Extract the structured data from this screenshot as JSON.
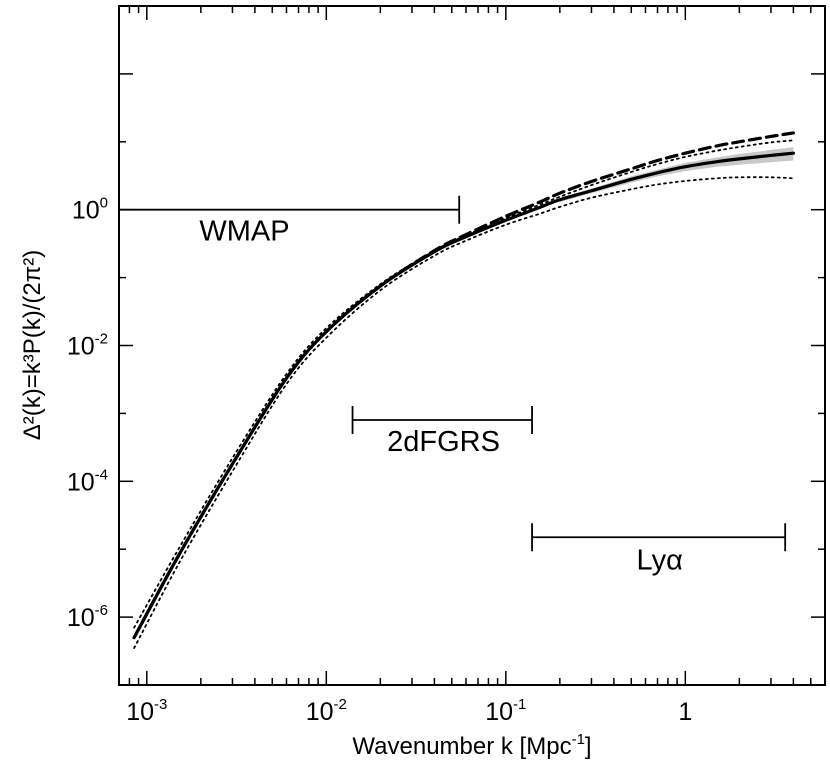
{
  "chart_data": {
    "type": "line",
    "title": "",
    "xlabel": "Wavenumber k [Mpc",
    "xlabel_sup": "-1",
    "xlabel_end": "]",
    "ylabel": "Δ²(k)=k³P(k)/(2π²)",
    "x_scale": "log",
    "y_scale": "log",
    "xlim": [
      0.0007,
      6.0
    ],
    "ylim": [
      1e-07,
      1000
    ],
    "grid": false,
    "legend": "none",
    "x_ticks": [
      {
        "base": "10",
        "exp": "-3",
        "value": 0.001
      },
      {
        "base": "10",
        "exp": "-2",
        "value": 0.01
      },
      {
        "base": "10",
        "exp": "-1",
        "value": 0.1
      },
      {
        "base": "1",
        "exp": "",
        "value": 1
      }
    ],
    "y_ticks": [
      {
        "base": "10",
        "exp": "-6",
        "value": 1e-06
      },
      {
        "base": "10",
        "exp": "-4",
        "value": 0.0001
      },
      {
        "base": "10",
        "exp": "-2",
        "value": 0.01
      },
      {
        "base": "10",
        "exp": "0",
        "value": 1
      }
    ],
    "annotations": [
      {
        "label": "WMAP",
        "k_min": 0.0007,
        "k_max": 0.055,
        "y": 1.0,
        "label_x": 0.0035,
        "label_y": 0.35
      },
      {
        "label": "2dFGRS",
        "k_min": 0.014,
        "k_max": 0.14,
        "y": 0.0008,
        "label_x": 0.045,
        "label_y": 0.00028
      },
      {
        "label": "Lyα",
        "k_min": 0.14,
        "k_max": 3.6,
        "y": 1.5e-05,
        "label_x": 0.72,
        "label_y": 5e-06
      }
    ],
    "series": [
      {
        "style": "solid",
        "x": [
          0.00085,
          0.0015,
          0.003,
          0.006,
          0.01,
          0.02,
          0.04,
          0.06,
          0.1,
          0.15,
          0.2,
          0.3,
          0.5,
          0.7,
          1.0,
          1.5,
          2.0,
          3.0,
          4.0
        ],
        "y": [
          5e-07,
          8e-06,
          0.00018,
          0.0033,
          0.016,
          0.075,
          0.24,
          0.4,
          0.7,
          1.05,
          1.4,
          1.9,
          2.8,
          3.5,
          4.3,
          5.1,
          5.6,
          6.3,
          6.8
        ]
      },
      {
        "style": "dashed",
        "x": [
          0.00085,
          0.0015,
          0.003,
          0.006,
          0.01,
          0.02,
          0.04,
          0.06,
          0.1,
          0.15,
          0.2,
          0.3,
          0.5,
          0.7,
          1.0,
          1.5,
          2.0,
          3.0,
          4.0
        ],
        "y": [
          5e-07,
          8e-06,
          0.00018,
          0.0033,
          0.016,
          0.075,
          0.25,
          0.43,
          0.8,
          1.25,
          1.75,
          2.6,
          4.0,
          5.3,
          6.8,
          8.7,
          10.0,
          12.0,
          13.5
        ]
      },
      {
        "style": "dotted-upper",
        "x": [
          0.00085,
          0.0015,
          0.003,
          0.006,
          0.01,
          0.02,
          0.04,
          0.06,
          0.1,
          0.15,
          0.2,
          0.3,
          0.5,
          0.7,
          1.0,
          1.5,
          2.0,
          3.0,
          4.0
        ],
        "y": [
          7e-07,
          1e-05,
          0.00022,
          0.0038,
          0.018,
          0.08,
          0.25,
          0.42,
          0.75,
          1.15,
          1.55,
          2.3,
          3.6,
          4.7,
          6.0,
          7.4,
          8.4,
          9.8,
          10.5
        ]
      },
      {
        "style": "dotted-lower",
        "x": [
          0.00085,
          0.0015,
          0.003,
          0.006,
          0.01,
          0.02,
          0.04,
          0.06,
          0.1,
          0.15,
          0.2,
          0.3,
          0.5,
          0.7,
          1.0,
          1.5,
          2.0,
          3.0,
          4.0
        ],
        "y": [
          3.5e-07,
          6e-06,
          0.00014,
          0.0027,
          0.013,
          0.065,
          0.21,
          0.35,
          0.6,
          0.85,
          1.1,
          1.5,
          2.0,
          2.35,
          2.65,
          2.9,
          3.0,
          3.0,
          2.9
        ]
      }
    ],
    "band": {
      "x": [
        0.2,
        0.3,
        0.5,
        0.7,
        1.0,
        1.5,
        2.0,
        3.0,
        4.0
      ],
      "y_low": [
        1.3,
        1.75,
        2.5,
        3.1,
        3.7,
        4.3,
        4.6,
        5.0,
        5.3
      ],
      "y_high": [
        1.5,
        2.05,
        3.1,
        3.9,
        4.9,
        5.9,
        6.6,
        7.6,
        8.3
      ]
    },
    "colors": {
      "line": "#000000",
      "band": "#c8c8c8",
      "axis": "#000000"
    }
  }
}
